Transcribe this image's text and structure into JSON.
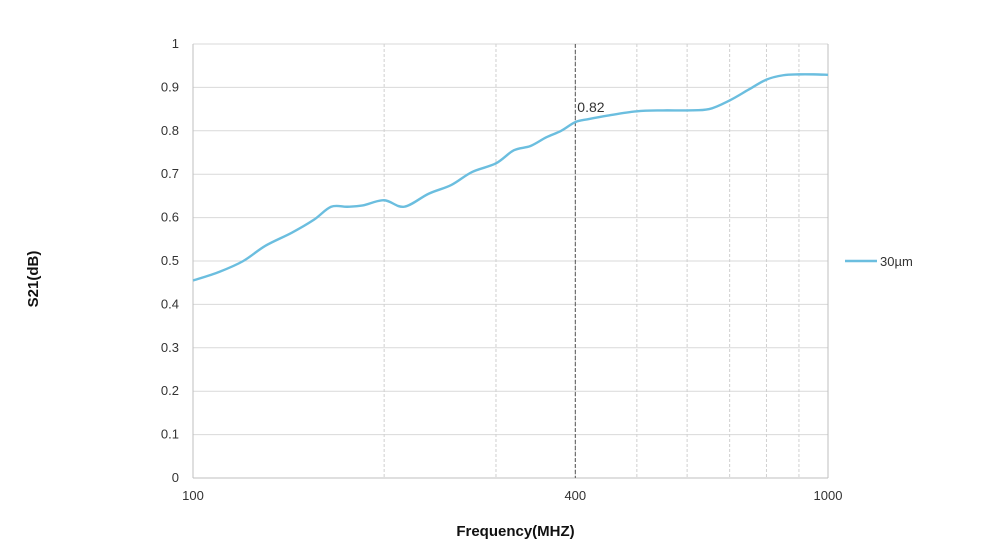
{
  "chart_data": {
    "type": "line",
    "title": "",
    "xlabel": "Frequency(MHZ)",
    "ylabel": "S21(dB)",
    "x_scale": "log",
    "xlim": [
      100,
      1000
    ],
    "ylim": [
      0,
      1
    ],
    "x_tick_labels": [
      "100",
      "400",
      "1000"
    ],
    "y_tick_labels": [
      "0",
      "0.1",
      "0.2",
      "0.3",
      "0.4",
      "0.5",
      "0.6",
      "0.7",
      "0.8",
      "0.9",
      "1"
    ],
    "grid": true,
    "legend_position": "right",
    "series": [
      {
        "name": "30µm",
        "color": "#6BBEDF",
        "x": [
          100,
          110,
          120,
          130,
          143,
          155,
          165,
          175,
          185,
          200,
          215,
          235,
          255,
          275,
          300,
          320,
          340,
          360,
          380,
          400,
          420,
          450,
          500,
          550,
          600,
          650,
          700,
          750,
          800,
          850,
          900,
          950,
          1000
        ],
        "y": [
          0.455,
          0.475,
          0.5,
          0.535,
          0.565,
          0.595,
          0.625,
          0.625,
          0.628,
          0.64,
          0.625,
          0.655,
          0.675,
          0.705,
          0.725,
          0.755,
          0.765,
          0.785,
          0.8,
          0.82,
          0.827,
          0.835,
          0.845,
          0.847,
          0.847,
          0.85,
          0.87,
          0.895,
          0.918,
          0.928,
          0.93,
          0.93,
          0.929
        ]
      }
    ],
    "annotations": [
      {
        "x": 400,
        "text": "0.82"
      }
    ]
  }
}
